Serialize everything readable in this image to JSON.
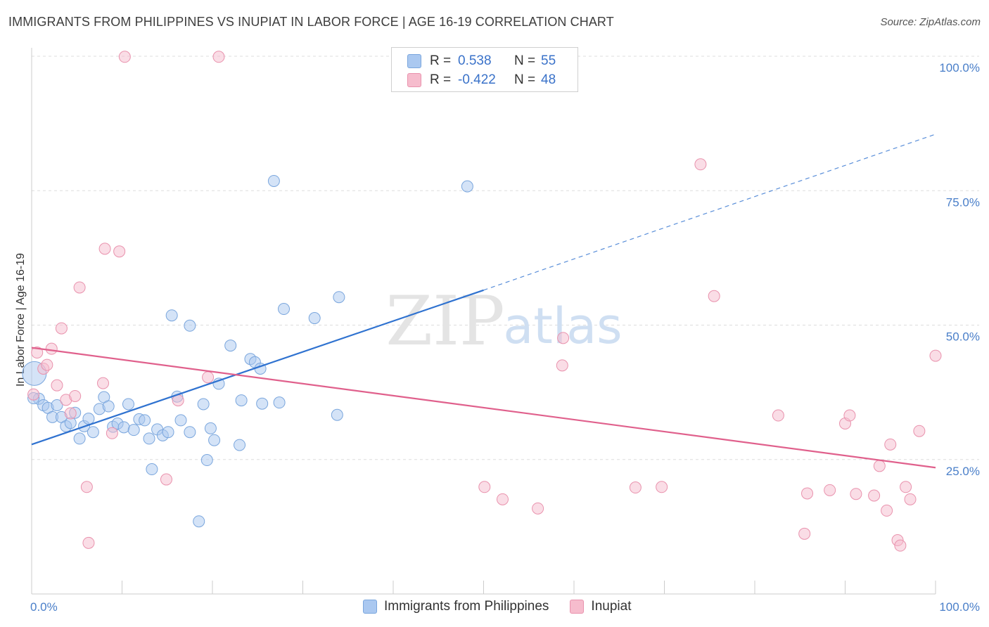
{
  "header": {
    "title": "IMMIGRANTS FROM PHILIPPINES VS INUPIAT IN LABOR FORCE | AGE 16-19 CORRELATION CHART",
    "source": "Source: ZipAtlas.com"
  },
  "watermark": {
    "zip": "ZIP",
    "atlas": "atlas"
  },
  "legend": {
    "rows": [
      {
        "r_label": "R =",
        "r_value": "0.538",
        "n_label": "N =",
        "n_value": "55"
      },
      {
        "r_label": "R =",
        "r_value": "-0.422",
        "n_label": "N =",
        "n_value": "48"
      }
    ]
  },
  "bottom_legend": {
    "series1": "Immigrants from Philippines",
    "series2": "Inupiat"
  },
  "colors": {
    "blue_fill": "#aac8f0",
    "blue_stroke": "#7aa6dd",
    "blue_line": "#2f72d0",
    "pink_fill": "#f6bccd",
    "pink_stroke": "#e992ad",
    "pink_line": "#e0608c",
    "tick_text": "#4a7fc9",
    "grid": "#dddddd"
  },
  "chart_data": {
    "type": "scatter",
    "title": "IMMIGRANTS FROM PHILIPPINES VS INUPIAT IN LABOR FORCE | AGE 16-19 CORRELATION CHART",
    "xlabel": "",
    "ylabel": "In Labor Force | Age 16-19",
    "xlim": [
      0,
      100
    ],
    "ylim": [
      0,
      102
    ],
    "x_tick_labels": [
      {
        "value": 0,
        "label": "0.0%"
      },
      {
        "value": 100,
        "label": "100.0%"
      }
    ],
    "y_tick_labels": [
      {
        "value": 25,
        "label": "25.0%"
      },
      {
        "value": 50,
        "label": "50.0%"
      },
      {
        "value": 75,
        "label": "75.0%"
      },
      {
        "value": 100,
        "label": "100.0%"
      }
    ],
    "series": [
      {
        "name": "Immigrants from Philippines",
        "color": "#aac8f0",
        "trend": {
          "x0": 0,
          "y0": 27.8,
          "x1": 50,
          "y1": 56.5,
          "dashed_to_x": 100,
          "dashed_to_y": 85.5
        },
        "points": [
          [
            0.3,
            41.0
          ],
          [
            0.8,
            36.3
          ],
          [
            1.3,
            35.1
          ],
          [
            1.8,
            34.6
          ],
          [
            2.3,
            32.9
          ],
          [
            2.8,
            35.1
          ],
          [
            3.3,
            32.9
          ],
          [
            3.8,
            31.2
          ],
          [
            4.3,
            31.8
          ],
          [
            4.8,
            33.7
          ],
          [
            5.3,
            28.9
          ],
          [
            5.8,
            31.2
          ],
          [
            6.3,
            32.6
          ],
          [
            6.8,
            30.1
          ],
          [
            7.5,
            34.4
          ],
          [
            8.0,
            36.6
          ],
          [
            8.5,
            34.9
          ],
          [
            9.0,
            31.1
          ],
          [
            9.5,
            31.7
          ],
          [
            10.2,
            31.0
          ],
          [
            10.7,
            35.3
          ],
          [
            11.3,
            30.5
          ],
          [
            11.9,
            32.5
          ],
          [
            12.5,
            32.3
          ],
          [
            13.0,
            28.9
          ],
          [
            13.3,
            23.2
          ],
          [
            13.9,
            30.6
          ],
          [
            14.5,
            29.5
          ],
          [
            15.1,
            30.1
          ],
          [
            15.5,
            51.8
          ],
          [
            16.1,
            36.7
          ],
          [
            16.5,
            32.3
          ],
          [
            17.5,
            30.1
          ],
          [
            17.5,
            49.9
          ],
          [
            18.5,
            13.5
          ],
          [
            19.0,
            35.3
          ],
          [
            19.4,
            24.9
          ],
          [
            19.8,
            30.8
          ],
          [
            20.2,
            28.6
          ],
          [
            20.7,
            39.1
          ],
          [
            22.0,
            46.2
          ],
          [
            23.0,
            27.7
          ],
          [
            23.2,
            36.0
          ],
          [
            24.2,
            43.7
          ],
          [
            24.7,
            43.1
          ],
          [
            25.3,
            41.9
          ],
          [
            25.5,
            35.4
          ],
          [
            26.8,
            76.8
          ],
          [
            27.4,
            35.6
          ],
          [
            27.9,
            53.0
          ],
          [
            31.3,
            51.3
          ],
          [
            33.8,
            33.3
          ],
          [
            34.0,
            55.2
          ],
          [
            48.2,
            75.8
          ],
          [
            0.2,
            36.4
          ]
        ]
      },
      {
        "name": "Inupiat",
        "color": "#f6bccd",
        "trend": {
          "x0": 0,
          "y0": 45.8,
          "x1": 100,
          "y1": 23.5
        },
        "points": [
          [
            0.6,
            44.9
          ],
          [
            1.3,
            41.9
          ],
          [
            1.7,
            42.6
          ],
          [
            2.2,
            45.6
          ],
          [
            2.8,
            38.8
          ],
          [
            3.3,
            49.4
          ],
          [
            3.8,
            36.1
          ],
          [
            4.3,
            33.6
          ],
          [
            4.8,
            36.8
          ],
          [
            5.3,
            57.0
          ],
          [
            6.1,
            19.9
          ],
          [
            6.3,
            9.5
          ],
          [
            7.9,
            39.2
          ],
          [
            8.1,
            64.2
          ],
          [
            8.9,
            29.9
          ],
          [
            9.7,
            63.7
          ],
          [
            10.3,
            99.9
          ],
          [
            14.9,
            21.3
          ],
          [
            16.2,
            36.0
          ],
          [
            19.5,
            40.3
          ],
          [
            20.7,
            99.9
          ],
          [
            50.1,
            19.9
          ],
          [
            52.1,
            17.6
          ],
          [
            56.0,
            15.9
          ],
          [
            58.8,
            47.6
          ],
          [
            58.7,
            42.5
          ],
          [
            66.8,
            19.8
          ],
          [
            69.7,
            19.9
          ],
          [
            74.0,
            79.9
          ],
          [
            75.5,
            55.4
          ],
          [
            82.6,
            33.2
          ],
          [
            85.5,
            11.2
          ],
          [
            85.8,
            18.7
          ],
          [
            88.3,
            19.3
          ],
          [
            90.0,
            31.7
          ],
          [
            90.5,
            33.2
          ],
          [
            91.2,
            18.6
          ],
          [
            93.2,
            18.3
          ],
          [
            93.8,
            23.8
          ],
          [
            94.6,
            15.5
          ],
          [
            95.0,
            27.8
          ],
          [
            95.8,
            10.0
          ],
          [
            96.1,
            9.0
          ],
          [
            96.7,
            19.9
          ],
          [
            97.2,
            17.6
          ],
          [
            98.2,
            30.3
          ],
          [
            100.0,
            44.3
          ],
          [
            0.2,
            37.1
          ]
        ]
      }
    ]
  }
}
